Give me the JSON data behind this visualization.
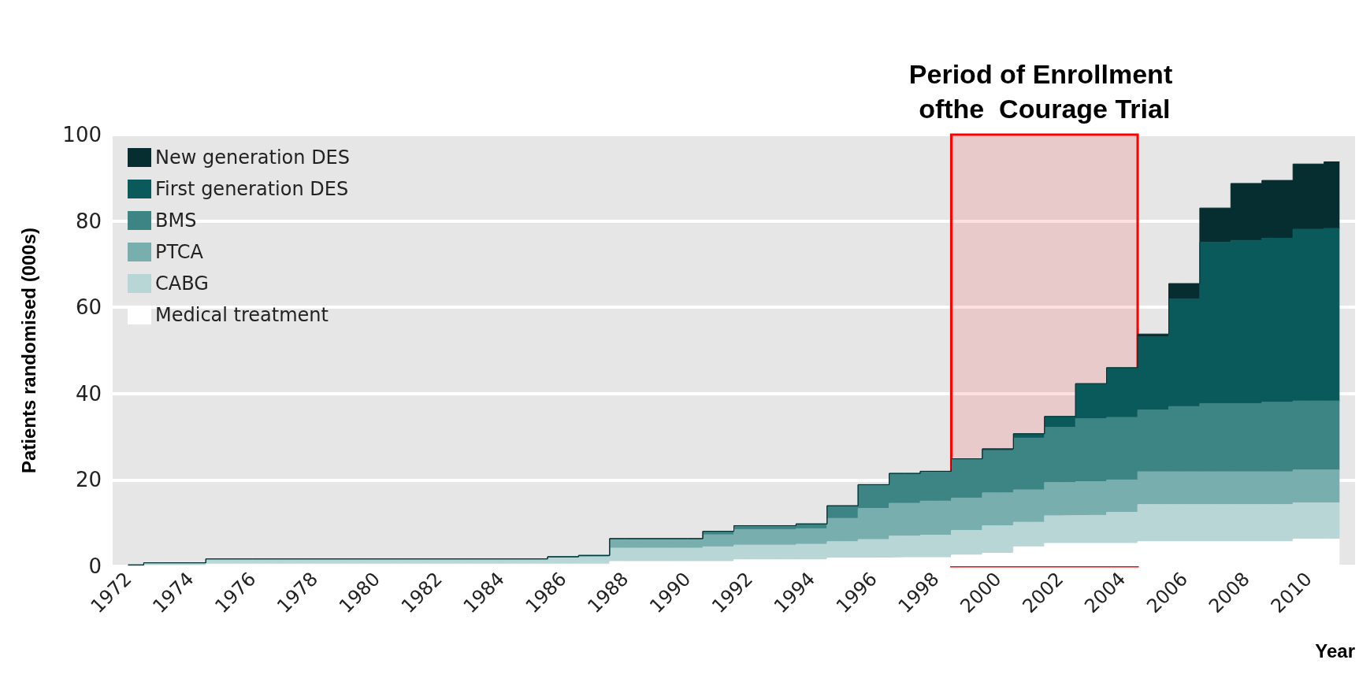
{
  "chart_data": {
    "type": "area",
    "stacked": true,
    "xlabel": "Year",
    "ylabel": "Patients randomised (000s)",
    "x": [
      1972,
      1973,
      1974,
      1975,
      1976,
      1977,
      1978,
      1979,
      1980,
      1981,
      1982,
      1983,
      1984,
      1985,
      1986,
      1987,
      1988,
      1989,
      1990,
      1991,
      1992,
      1993,
      1994,
      1995,
      1996,
      1997,
      1998,
      1999,
      2000,
      2001,
      2002,
      2003,
      2004,
      2005,
      2006,
      2007,
      2008,
      2009,
      2010,
      2011
    ],
    "xlim": [
      1971.5,
      2011.5
    ],
    "xticks": [
      1972,
      1974,
      1976,
      1978,
      1980,
      1982,
      1984,
      1986,
      1988,
      1990,
      1992,
      1994,
      1996,
      1998,
      2000,
      2002,
      2004,
      2006,
      2008,
      2010
    ],
    "ylim": [
      0,
      100
    ],
    "yticks": [
      0,
      20,
      40,
      60,
      80,
      100
    ],
    "grid": "y",
    "legend": "top left",
    "series": [
      {
        "name": "Medical treatment",
        "color": "#ffffff",
        "values": [
          0,
          0.2,
          0.2,
          0.5,
          0.5,
          0.5,
          0.5,
          0.5,
          0.5,
          0.5,
          0.5,
          0.5,
          0.5,
          0.5,
          0.5,
          0.5,
          1.1,
          1.1,
          1.1,
          1.1,
          1.5,
          1.5,
          1.5,
          1.9,
          1.9,
          2.0,
          2.0,
          2.6,
          3.0,
          4.5,
          5.3,
          5.3,
          5.3,
          5.7,
          5.7,
          5.7,
          5.7,
          5.7,
          6.3,
          6.3
        ]
      },
      {
        "name": "CABG",
        "color": "#b9d6d7",
        "values": [
          0.3,
          0.6,
          0.6,
          1.2,
          1.2,
          1.2,
          1.2,
          1.2,
          1.2,
          1.2,
          1.2,
          1.2,
          1.2,
          1.2,
          1.5,
          1.6,
          3.1,
          3.1,
          3.1,
          3.4,
          3.4,
          3.4,
          3.6,
          3.8,
          4.3,
          5.0,
          5.2,
          5.7,
          6.4,
          5.7,
          6.4,
          6.5,
          7.2,
          8.6,
          8.6,
          8.6,
          8.6,
          8.6,
          8.4,
          8.4
        ]
      },
      {
        "name": "PTCA",
        "color": "#79aeae",
        "values": [
          0,
          0,
          0,
          0,
          0,
          0,
          0,
          0,
          0,
          0,
          0,
          0,
          0,
          0,
          0.2,
          0.4,
          2.2,
          2.2,
          2.2,
          2.8,
          3.6,
          3.6,
          3.6,
          5.4,
          7.2,
          7.6,
          7.9,
          7.5,
          7.6,
          7.5,
          7.7,
          7.8,
          7.5,
          7.6,
          7.6,
          7.6,
          7.6,
          7.6,
          7.6,
          7.6
        ]
      },
      {
        "name": "BMS",
        "color": "#3d8485",
        "values": [
          0,
          0,
          0,
          0,
          0,
          0,
          0,
          0,
          0,
          0,
          0,
          0,
          0,
          0,
          0,
          0,
          0,
          0,
          0,
          0.8,
          0.9,
          0.9,
          1.1,
          2.9,
          5.5,
          6.9,
          6.9,
          9.1,
          9.8,
          12.0,
          12.8,
          14.6,
          14.5,
          14.3,
          15.1,
          15.8,
          15.8,
          16.1,
          16.0,
          16.0
        ]
      },
      {
        "name": "First generation DES",
        "color": "#0a5a5c",
        "values": [
          0,
          0,
          0,
          0,
          0,
          0,
          0,
          0,
          0,
          0,
          0,
          0,
          0,
          0,
          0,
          0,
          0,
          0,
          0,
          0,
          0,
          0,
          0,
          0,
          0,
          0,
          0,
          0,
          0.4,
          1.0,
          2.5,
          8.1,
          11.5,
          17.0,
          24.9,
          37.4,
          37.8,
          38.0,
          39.8,
          40.0
        ]
      },
      {
        "name": "New generation DES",
        "color": "#062e30",
        "values": [
          0,
          0,
          0,
          0,
          0,
          0,
          0,
          0,
          0,
          0,
          0,
          0,
          0,
          0,
          0,
          0,
          0,
          0,
          0,
          0,
          0,
          0,
          0,
          0,
          0,
          0,
          0,
          0,
          0,
          0,
          0,
          0,
          0,
          0.6,
          3.6,
          7.9,
          13.2,
          13.4,
          15.1,
          15.4
        ]
      }
    ],
    "bands": [
      {
        "axis": "x",
        "from": 1998.5,
        "to": 2004.5,
        "label": "Period of Enrollment ofthe  Courage Trial",
        "color": "#ff0000"
      }
    ]
  }
}
